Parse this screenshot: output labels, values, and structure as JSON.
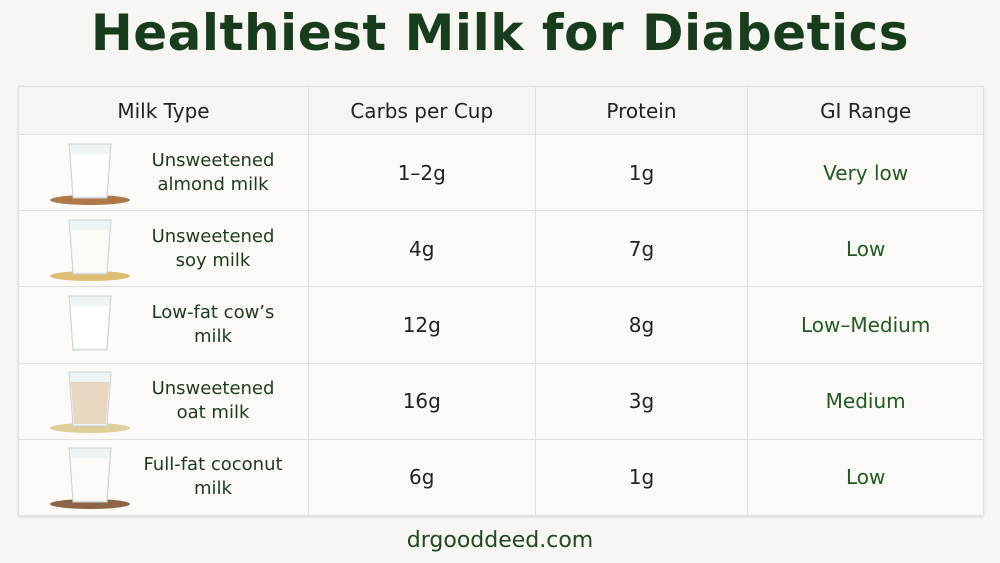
{
  "title": "Healthiest Milk for Diabetics",
  "table": {
    "header": [
      "Milk Type",
      "Carbs per Cup",
      "Protein",
      "GI Range"
    ],
    "rows": [
      [
        "Unsweetened almond milk",
        "1–2g",
        "1g",
        "Very low"
      ],
      [
        "Unsweetened soy milk",
        "4g",
        "7g",
        "Low"
      ],
      [
        "Low-fat cow’s milk",
        "12g",
        "8g",
        "Low–Medium"
      ],
      [
        "Unsweetened oat milk",
        "16g",
        "3g",
        "Medium"
      ],
      [
        "Full-fat coconut milk",
        "6g",
        "1g",
        "Low"
      ]
    ]
  },
  "footer": "drgooddeed.com"
}
